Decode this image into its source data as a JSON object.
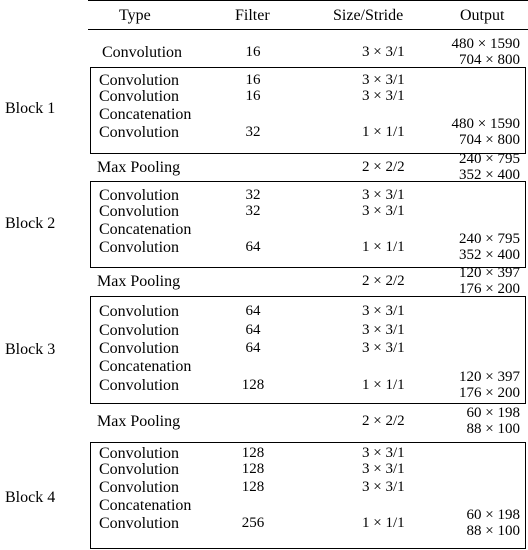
{
  "headers": {
    "type": "Type",
    "filter": "Filter",
    "size": "Size/Stride",
    "output": "Output"
  },
  "rows": [
    {
      "type": "Convolution",
      "filter": "16",
      "size": "3 × 3/1",
      "out1": "480 × 1590",
      "out2": "704 × 800"
    },
    {
      "type": "Convolution",
      "filter": "16",
      "size": "3 × 3/1"
    },
    {
      "type": "Convolution",
      "filter": "16",
      "size": "3 × 3/1"
    },
    {
      "type": "Concatenation"
    },
    {
      "type": "Convolution",
      "filter": "32",
      "size": "1 × 1/1",
      "out1": "480 × 1590",
      "out2": "704 × 800"
    },
    {
      "type": "Max Pooling",
      "size": "2 × 2/2",
      "out1": "240 × 795",
      "out2": "352 × 400"
    },
    {
      "type": "Convolution",
      "filter": "32",
      "size": "3 × 3/1"
    },
    {
      "type": "Convolution",
      "filter": "32",
      "size": "3 × 3/1"
    },
    {
      "type": "Concatenation"
    },
    {
      "type": "Convolution",
      "filter": "64",
      "size": "1 × 1/1",
      "out1": "240 × 795",
      "out2": "352 × 400"
    },
    {
      "type": "Max Pooling",
      "size": "2 × 2/2",
      "out1": "120 × 397",
      "out2": "176 × 200"
    },
    {
      "type": "Convolution",
      "filter": "64",
      "size": "3 × 3/1"
    },
    {
      "type": "Convolution",
      "filter": "64",
      "size": "3 × 3/1"
    },
    {
      "type": "Convolution",
      "filter": "64",
      "size": "3 × 3/1"
    },
    {
      "type": "Concatenation"
    },
    {
      "type": "Convolution",
      "filter": "128",
      "size": "1 × 1/1",
      "out1": "120 × 397",
      "out2": "176 × 200"
    },
    {
      "type": "Max Pooling",
      "size": "2 × 2/2",
      "out1": "60 × 198",
      "out2": "88 × 100"
    },
    {
      "type": "Convolution",
      "filter": "128",
      "size": "3 × 3/1"
    },
    {
      "type": "Convolution",
      "filter": "128",
      "size": "3 × 3/1"
    },
    {
      "type": "Convolution",
      "filter": "128",
      "size": "3 × 3/1"
    },
    {
      "type": "Concatenation"
    },
    {
      "type": "Convolution",
      "filter": "256",
      "size": "1 × 1/1",
      "out1": "60 × 198",
      "out2": "88 × 100"
    }
  ],
  "blocks": [
    "Block 1",
    "Block 2",
    "Block 3",
    "Block 4"
  ]
}
